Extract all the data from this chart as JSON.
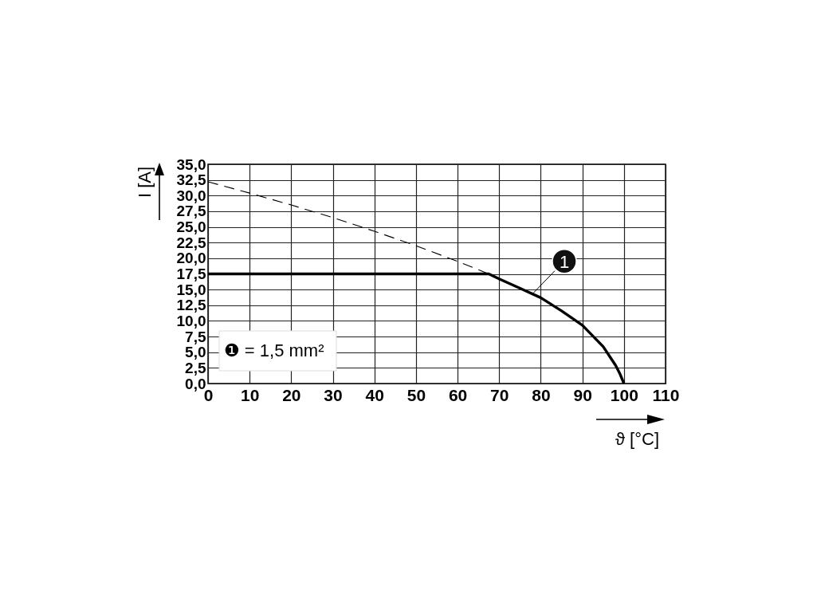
{
  "chart_data": {
    "type": "line",
    "xlabel": "ϑ [°C]",
    "ylabel": "I [A]",
    "series": [
      {
        "color": "#000000",
        "line_style": "dashed",
        "x": [
          0,
          10,
          20,
          30,
          40,
          50,
          60,
          67.5
        ],
        "values": [
          32.2,
          30.4,
          28.5,
          26.5,
          24.3,
          22.0,
          19.5,
          17.5
        ]
      },
      {
        "color": "#000000",
        "line_style": "solid",
        "x": [
          0,
          67.5,
          70,
          75,
          80,
          85,
          90,
          95,
          98,
          99,
          100
        ],
        "values": [
          17.5,
          17.5,
          16.7,
          15.2,
          13.7,
          11.6,
          9.3,
          5.9,
          2.9,
          1.6,
          0
        ]
      }
    ],
    "xlim": [
      0,
      110
    ],
    "xticks": [
      0,
      10,
      20,
      30,
      40,
      50,
      60,
      70,
      80,
      90,
      100,
      110
    ],
    "ylim": [
      0,
      35
    ],
    "yticks": [
      {
        "value": 0,
        "label": "0,0"
      },
      {
        "value": 2.5,
        "label": "2,5"
      },
      {
        "value": 5,
        "label": "5,0"
      },
      {
        "value": 7.5,
        "label": "7,5"
      },
      {
        "value": 10,
        "label": "10,0"
      },
      {
        "value": 12.5,
        "label": "12,5"
      },
      {
        "value": 15,
        "label": "15,0"
      },
      {
        "value": 17.5,
        "label": "17,5"
      },
      {
        "value": 20,
        "label": "20,0"
      },
      {
        "value": 22.5,
        "label": "22,5"
      },
      {
        "value": 25,
        "label": "25,0"
      },
      {
        "value": 27.5,
        "label": "27,5"
      },
      {
        "value": 30,
        "label": "30,0"
      },
      {
        "value": 32.5,
        "label": "32,5"
      },
      {
        "value": 35,
        "label": "35,0"
      }
    ],
    "grid": true,
    "annotations": [
      {
        "text": "1",
        "x": 78,
        "y": 14.3
      },
      "❶ = 1,5 mm²"
    ]
  }
}
